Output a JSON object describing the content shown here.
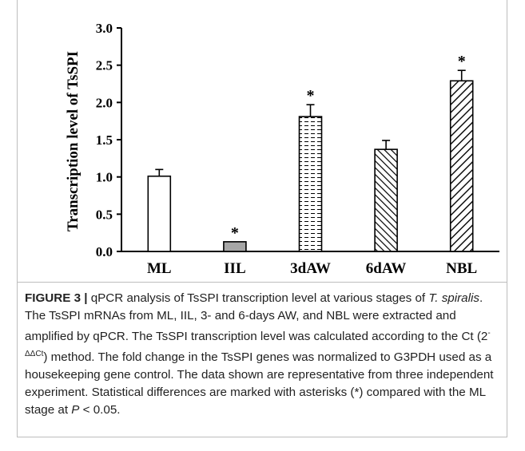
{
  "chart_data": {
    "type": "bar",
    "categories": [
      "ML",
      "IIL",
      "3dAW",
      "6dAW",
      "NBL"
    ],
    "values": [
      1.01,
      0.13,
      1.81,
      1.37,
      2.29
    ],
    "errors": [
      0.09,
      0.0,
      0.16,
      0.12,
      0.14
    ],
    "significant": [
      false,
      true,
      true,
      false,
      true
    ],
    "significance_marker": "*",
    "patterns": [
      "white",
      "gray-solid",
      "horizontal-dashes",
      "back-diagonal-hatch",
      "forward-diagonal-hatch"
    ],
    "ylabel": "Transcription level of TsSPI",
    "xlabel": "",
    "ylim": [
      0,
      3.0
    ],
    "yticks": [
      "0.0",
      "0.5",
      "1.0",
      "1.5",
      "2.0",
      "2.5",
      "3.0"
    ],
    "grid": false
  },
  "caption": {
    "lead": "FIGURE 3 |",
    "p1": " qPCR analysis of TsSPI transcription level at various stages of ",
    "species": "T. spiralis",
    "p2": ". The TsSPI mRNAs from ML, IIL, 3- and 6-days AW, and NBL were extracted and amplified by qPCR. The TsSPI transcription level was calculated according to the Ct (2",
    "sup": "-ΔΔCt",
    "p3": ") method. The fold change in the TsSPI genes was normalized to G3PDH used as a housekeeping gene control. The data shown are representative from three independent experiment. Statistical differences are marked with asterisks (*) compared with the ML stage at ",
    "pvar": "P",
    "p4": " < 0.05."
  }
}
